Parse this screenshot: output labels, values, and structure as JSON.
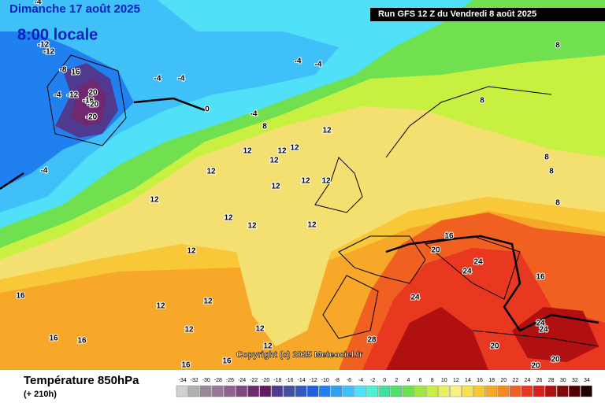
{
  "header": {
    "title": "Dimanche 17 août 2025",
    "subtitle": "8:00 locale",
    "run": "Run GFS 12 Z du Vendredi 8 août 2025"
  },
  "contour_labels": [
    "-4",
    "-12",
    "-12",
    "-8",
    "16",
    "-4",
    "-12",
    "-16",
    "20",
    "-20",
    "-20",
    "-4",
    "-4",
    "-4",
    "-4",
    "0",
    "-4",
    "-4",
    "8",
    "12",
    "12",
    "12",
    "12",
    "12",
    "12",
    "12",
    "12",
    "12",
    "12",
    "12",
    "12",
    "12",
    "12",
    "8",
    "8",
    "8",
    "8",
    "8",
    "16",
    "20",
    "24",
    "24",
    "16",
    "24",
    "24",
    "24",
    "28",
    "20",
    "20",
    "20",
    "16",
    "16",
    "16",
    "16",
    "16",
    "12",
    "12",
    "12",
    "12",
    "12"
  ],
  "copyright": "Copyright (c) 2025 Meteociel.fr",
  "footer": {
    "title": "Température 850hPa",
    "lead": "(+ 210h)"
  },
  "legend": {
    "values": [
      -34,
      -32,
      -30,
      -28,
      -26,
      -24,
      -22,
      -20,
      -18,
      -16,
      -14,
      -12,
      -10,
      -8,
      -6,
      -4,
      -2,
      0,
      2,
      4,
      6,
      8,
      10,
      12,
      14,
      16,
      18,
      20,
      22,
      24,
      26,
      28,
      30,
      32,
      34
    ],
    "colors": [
      "#d0d0d0",
      "#b0b0b0",
      "#988898",
      "#987898",
      "#906090",
      "#804880",
      "#702870",
      "#601a60",
      "#503a90",
      "#4050a0",
      "#3058c0",
      "#2060e0",
      "#2080f0",
      "#30a0f0",
      "#40c0f8",
      "#50e0f8",
      "#50f0d0",
      "#40e0a0",
      "#50e070",
      "#70e050",
      "#a0e840",
      "#c8f040",
      "#e8f060",
      "#f8f080",
      "#f8e050",
      "#f8c830",
      "#f8a820",
      "#f88820",
      "#f06020",
      "#e83820",
      "#d82020",
      "#b01010",
      "#800808",
      "#500000",
      "#200000"
    ]
  }
}
